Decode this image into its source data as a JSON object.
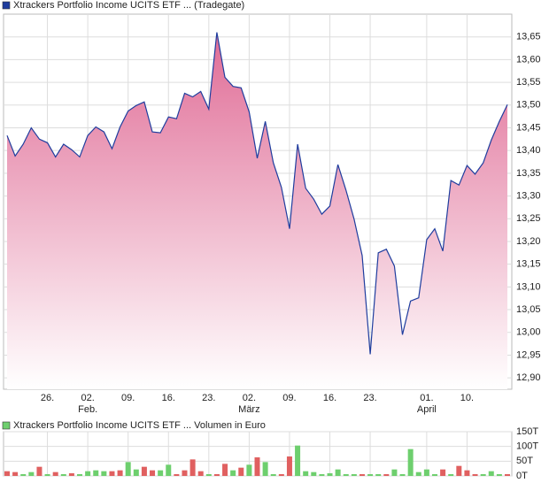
{
  "chart_data": [
    {
      "type": "area",
      "title": "Xtrackers Portfolio Income UCITS ETF ... (Tradegate)",
      "title_marker_color": "#1f3d9e",
      "color": "#1f3d9e",
      "fill_top": "#e06c96",
      "fill_bottom": "#ffffff",
      "grid": true,
      "xlim": [
        0,
        62
      ],
      "ylim": [
        12.875,
        13.7
      ],
      "xticks": [
        {
          "value": 5,
          "label": "26."
        },
        {
          "value": 10,
          "label": "02."
        },
        {
          "value": 15,
          "label": "09."
        },
        {
          "value": 20,
          "label": "16."
        },
        {
          "value": 25,
          "label": "23."
        },
        {
          "value": 30,
          "label": "02."
        },
        {
          "value": 35,
          "label": "09."
        },
        {
          "value": 40,
          "label": "16."
        },
        {
          "value": 45,
          "label": "23."
        },
        {
          "value": 52,
          "label": "01."
        },
        {
          "value": 57,
          "label": "10."
        }
      ],
      "month_labels": [
        {
          "value": 10,
          "label": "Feb."
        },
        {
          "value": 30,
          "label": "März"
        },
        {
          "value": 52,
          "label": "April"
        }
      ],
      "yticks": [
        {
          "value": 12.9,
          "label": "12,90"
        },
        {
          "value": 12.95,
          "label": "12,95"
        },
        {
          "value": 13.0,
          "label": "13,00"
        },
        {
          "value": 13.05,
          "label": "13,05"
        },
        {
          "value": 13.1,
          "label": "13,10"
        },
        {
          "value": 13.15,
          "label": "13,15"
        },
        {
          "value": 13.2,
          "label": "13,20"
        },
        {
          "value": 13.25,
          "label": "13,25"
        },
        {
          "value": 13.3,
          "label": "13,30"
        },
        {
          "value": 13.35,
          "label": "13,35"
        },
        {
          "value": 13.4,
          "label": "13,40"
        },
        {
          "value": 13.45,
          "label": "13,45"
        },
        {
          "value": 13.5,
          "label": "13,50"
        },
        {
          "value": 13.55,
          "label": "13,55"
        },
        {
          "value": 13.6,
          "label": "13,60"
        },
        {
          "value": 13.65,
          "label": "13,65"
        }
      ],
      "values": [
        13.433,
        13.388,
        13.414,
        13.45,
        13.425,
        13.417,
        13.386,
        13.414,
        13.402,
        13.386,
        13.433,
        13.452,
        13.441,
        13.404,
        13.452,
        13.487,
        13.499,
        13.507,
        13.441,
        13.439,
        13.474,
        13.47,
        13.526,
        13.518,
        13.53,
        13.491,
        13.66,
        13.561,
        13.541,
        13.538,
        13.485,
        13.383,
        13.464,
        13.373,
        13.319,
        13.228,
        13.414,
        13.317,
        13.293,
        13.26,
        13.278,
        13.369,
        13.313,
        13.249,
        13.169,
        12.952,
        13.175,
        13.183,
        13.146,
        12.995,
        13.069,
        13.076,
        13.204,
        13.228,
        13.179,
        13.334,
        13.324,
        13.367,
        13.348,
        13.373,
        13.423,
        13.464,
        13.501
      ]
    },
    {
      "type": "bar",
      "title": "Xtrackers Portfolio Income UCITS ETF ... Volumen in Euro",
      "title_marker_color": "#6ecf6e",
      "grid": true,
      "xlim": [
        0,
        62
      ],
      "ylim": [
        0,
        150
      ],
      "yticks": [
        {
          "value": 0,
          "label": "0T"
        },
        {
          "value": 50,
          "label": "50T"
        },
        {
          "value": 100,
          "label": "100T"
        },
        {
          "value": 150,
          "label": "150T"
        }
      ],
      "values": [
        16,
        13,
        6,
        13,
        31,
        6,
        13,
        6,
        9,
        6,
        16,
        19,
        16,
        16,
        19,
        47,
        22,
        31,
        19,
        19,
        38,
        6,
        19,
        56,
        16,
        6,
        6,
        41,
        19,
        28,
        38,
        63,
        47,
        6,
        6,
        66,
        103,
        16,
        13,
        6,
        9,
        22,
        6,
        6,
        6,
        6,
        6,
        6,
        22,
        6,
        91,
        13,
        22,
        6,
        22,
        6,
        34,
        19,
        6,
        6,
        16,
        6,
        6
      ],
      "bar_colors": [
        "#e06060",
        "#e06060",
        "#6ecf6e",
        "#6ecf6e",
        "#e06060",
        "#6ecf6e",
        "#e06060",
        "#6ecf6e",
        "#e06060",
        "#6ecf6e",
        "#6ecf6e",
        "#6ecf6e",
        "#6ecf6e",
        "#e06060",
        "#e06060",
        "#6ecf6e",
        "#6ecf6e",
        "#e06060",
        "#e06060",
        "#6ecf6e",
        "#6ecf6e",
        "#e06060",
        "#e06060",
        "#e06060",
        "#e06060",
        "#6ecf6e",
        "#e06060",
        "#e06060",
        "#6ecf6e",
        "#e06060",
        "#6ecf6e",
        "#e06060",
        "#6ecf6e",
        "#6ecf6e",
        "#e06060",
        "#e06060",
        "#6ecf6e",
        "#6ecf6e",
        "#6ecf6e",
        "#6ecf6e",
        "#6ecf6e",
        "#6ecf6e",
        "#6ecf6e",
        "#6ecf6e",
        "#e06060",
        "#6ecf6e",
        "#6ecf6e",
        "#e06060",
        "#6ecf6e",
        "#6ecf6e",
        "#6ecf6e",
        "#6ecf6e",
        "#6ecf6e",
        "#6ecf6e",
        "#e06060",
        "#6ecf6e",
        "#e06060",
        "#e06060",
        "#e06060",
        "#6ecf6e",
        "#6ecf6e",
        "#6ecf6e",
        "#e06060"
      ]
    }
  ]
}
